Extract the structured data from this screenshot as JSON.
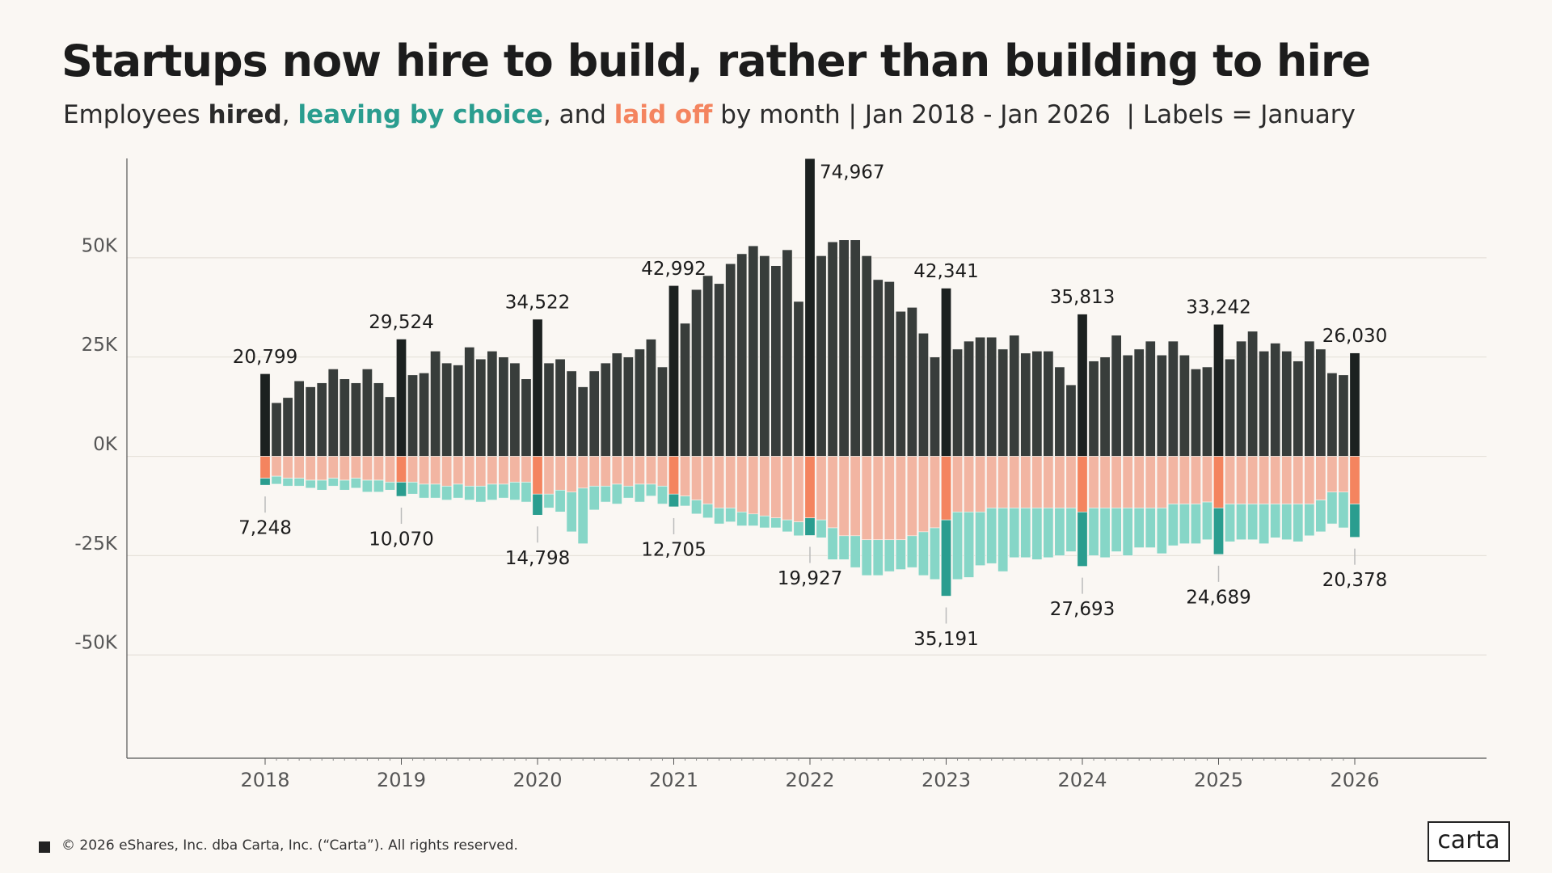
{
  "chart_data": {
    "type": "diverging-stacked-bar",
    "title": "Startups now hire to build, rather than building to hire",
    "subtitle": [
      "Employees ",
      ", ",
      ", and ",
      " by month | Jan 2018 - Jan 2026  | Labels = January"
    ],
    "footer": "© 2026 eShares, Inc. dba Carta, Inc. (“Carta”). All rights reserved.",
    "logo": "carta",
    "categories": [
      "2018",
      null,
      null,
      null,
      null,
      null,
      null,
      null,
      null,
      null,
      null,
      null,
      "2019",
      null,
      null,
      null,
      null,
      null,
      null,
      null,
      null,
      null,
      null,
      null,
      "2020",
      null,
      null,
      null,
      null,
      null,
      null,
      null,
      null,
      null,
      null,
      null,
      "2021",
      null,
      null,
      null,
      null,
      null,
      null,
      null,
      null,
      null,
      null,
      null,
      "2022",
      null,
      null,
      null,
      null,
      null,
      null,
      null,
      null,
      null,
      null,
      null,
      "2023",
      null,
      null,
      null,
      null,
      null,
      null,
      null,
      null,
      null,
      null,
      null,
      "2024",
      null,
      null,
      null,
      null,
      null,
      null,
      null,
      null,
      null,
      null,
      null,
      "2025",
      null,
      null,
      null,
      null,
      null,
      null,
      null,
      null,
      null,
      null,
      null,
      "2026"
    ],
    "ylim": [
      -76000,
      75000
    ],
    "yticks": [
      {
        "value": -50000,
        "label": "-50K"
      },
      {
        "value": -25000,
        "label": "-25K"
      },
      {
        "value": 0,
        "label": "0K"
      },
      {
        "value": 25000,
        "label": "25K"
      },
      {
        "value": 50000,
        "label": "50K"
      }
    ],
    "grid": true,
    "series": [
      {
        "name": "hired",
        "color": "#383d3b",
        "highlight_color": "#1c2120",
        "values": [
          20799,
          13500,
          14800,
          19000,
          17500,
          18500,
          22000,
          19500,
          18500,
          22000,
          18500,
          15000,
          29524,
          20500,
          21000,
          26500,
          23500,
          23000,
          27500,
          24500,
          26500,
          25000,
          23500,
          19500,
          34522,
          23500,
          24500,
          21500,
          17500,
          21500,
          23500,
          26000,
          25000,
          27000,
          29500,
          22500,
          42992,
          33500,
          42000,
          45500,
          43500,
          48500,
          51000,
          53000,
          50500,
          48000,
          52000,
          39000,
          74967,
          50500,
          54000,
          54500,
          54500,
          50500,
          44500,
          44000,
          36500,
          37500,
          31000,
          25000,
          42341,
          27000,
          29000,
          30000,
          30000,
          27000,
          30500,
          26000,
          26500,
          26500,
          22500,
          18000,
          35813,
          24000,
          25000,
          30500,
          25500,
          27000,
          29000,
          25500,
          29000,
          25500,
          22000,
          22500,
          33242,
          24500,
          29000,
          31500,
          26500,
          28500,
          26500,
          24000,
          29000,
          27000,
          21000,
          20500,
          26030
        ],
        "value_labels": [
          "20,799",
          null,
          null,
          null,
          null,
          null,
          null,
          null,
          null,
          null,
          null,
          null,
          "29,524",
          null,
          null,
          null,
          null,
          null,
          null,
          null,
          null,
          null,
          null,
          null,
          "34,522",
          null,
          null,
          null,
          null,
          null,
          null,
          null,
          null,
          null,
          null,
          null,
          "42,992",
          null,
          null,
          null,
          null,
          null,
          null,
          null,
          null,
          null,
          null,
          null,
          "74,967",
          null,
          null,
          null,
          null,
          null,
          null,
          null,
          null,
          null,
          null,
          null,
          "42,341",
          null,
          null,
          null,
          null,
          null,
          null,
          null,
          null,
          null,
          null,
          null,
          "35,813",
          null,
          null,
          null,
          null,
          null,
          null,
          null,
          null,
          null,
          null,
          null,
          "33,242",
          null,
          null,
          null,
          null,
          null,
          null,
          null,
          null,
          null,
          null,
          null,
          "26,030"
        ]
      },
      {
        "name": "laid off",
        "color": "#f2b5a2",
        "highlight_color": "#f4845f",
        "values": [
          -5500,
          -5000,
          -5500,
          -5500,
          -6000,
          -6000,
          -5500,
          -6000,
          -5500,
          -6000,
          -6000,
          -6500,
          -6500,
          -6500,
          -7000,
          -7000,
          -7500,
          -7000,
          -7500,
          -7500,
          -7000,
          -7000,
          -6500,
          -6500,
          -9500,
          -9500,
          -8500,
          -9000,
          -8000,
          -7500,
          -7500,
          -7000,
          -7500,
          -7000,
          -7000,
          -7500,
          -9500,
          -10000,
          -11000,
          -12000,
          -13000,
          -13000,
          -14000,
          -14500,
          -15000,
          -15500,
          -16000,
          -16500,
          -15500,
          -16000,
          -18000,
          -20000,
          -20000,
          -21000,
          -21000,
          -21000,
          -21000,
          -20000,
          -19000,
          -18000,
          -16000,
          -14000,
          -14000,
          -14000,
          -13000,
          -13000,
          -13000,
          -13000,
          -13000,
          -13000,
          -13000,
          -13000,
          -14000,
          -13000,
          -13000,
          -13000,
          -13000,
          -13000,
          -13000,
          -13000,
          -12000,
          -12000,
          -12000,
          -11500,
          -13000,
          -12000,
          -12000,
          -12000,
          -12000,
          -12000,
          -12000,
          -12000,
          -12000,
          -11000,
          -9000,
          -9000,
          -12000
        ]
      },
      {
        "name": "leaving by choice",
        "color": "#86d6c7",
        "highlight_color": "#2a9d8f",
        "values": [
          -1748,
          -2000,
          -2000,
          -2000,
          -2000,
          -2500,
          -2000,
          -2500,
          -2500,
          -3000,
          -3000,
          -2000,
          -3570,
          -3000,
          -3500,
          -3500,
          -3500,
          -3500,
          -3500,
          -4000,
          -4000,
          -3500,
          -4500,
          -5000,
          -5298,
          -3500,
          -5500,
          -10000,
          -14000,
          -6000,
          -4000,
          -5000,
          -3000,
          -4500,
          -3000,
          -4500,
          -3205,
          -2500,
          -3500,
          -3500,
          -4000,
          -3500,
          -3500,
          -3000,
          -3000,
          -2500,
          -3000,
          -3500,
          -4427,
          -4500,
          -8000,
          -6000,
          -8000,
          -9000,
          -9000,
          -8000,
          -7500,
          -8000,
          -11000,
          -13000,
          -19191,
          -17000,
          -16500,
          -13500,
          -14000,
          -16000,
          -12500,
          -12500,
          -13000,
          -12500,
          -12000,
          -11000,
          -13693,
          -12000,
          -12500,
          -11000,
          -12000,
          -10000,
          -10000,
          -11500,
          -10500,
          -10000,
          -10000,
          -9500,
          -11689,
          -9500,
          -9000,
          -9000,
          -10000,
          -8500,
          -9000,
          -9500,
          -8000,
          -8000,
          -8000,
          -9000,
          -8378
        ]
      }
    ],
    "departure_totals": {
      "values": [
        -7248,
        null,
        null,
        null,
        null,
        null,
        null,
        null,
        null,
        null,
        null,
        null,
        -10070,
        null,
        null,
        null,
        null,
        null,
        null,
        null,
        null,
        null,
        null,
        null,
        -14798,
        null,
        null,
        null,
        null,
        null,
        null,
        null,
        null,
        null,
        null,
        null,
        -12705,
        null,
        null,
        null,
        null,
        null,
        null,
        null,
        null,
        null,
        null,
        null,
        -19927,
        null,
        null,
        null,
        null,
        null,
        null,
        null,
        null,
        null,
        null,
        null,
        -35191,
        null,
        null,
        null,
        null,
        null,
        null,
        null,
        null,
        null,
        null,
        null,
        -27693,
        null,
        null,
        null,
        null,
        null,
        null,
        null,
        null,
        null,
        null,
        null,
        -24689,
        null,
        null,
        null,
        null,
        null,
        null,
        null,
        null,
        null,
        null,
        null,
        -20378
      ],
      "value_labels": [
        "7,248",
        null,
        null,
        null,
        null,
        null,
        null,
        null,
        null,
        null,
        null,
        null,
        "10,070",
        null,
        null,
        null,
        null,
        null,
        null,
        null,
        null,
        null,
        null,
        null,
        "14,798",
        null,
        null,
        null,
        null,
        null,
        null,
        null,
        null,
        null,
        null,
        null,
        "12,705",
        null,
        null,
        null,
        null,
        null,
        null,
        null,
        null,
        null,
        null,
        null,
        "19,927",
        null,
        null,
        null,
        null,
        null,
        null,
        null,
        null,
        null,
        null,
        null,
        "35,191",
        null,
        null,
        null,
        null,
        null,
        null,
        null,
        null,
        null,
        null,
        null,
        "27,693",
        null,
        null,
        null,
        null,
        null,
        null,
        null,
        null,
        null,
        null,
        null,
        "24,689",
        null,
        null,
        null,
        null,
        null,
        null,
        null,
        null,
        null,
        null,
        null,
        "20,378"
      ]
    }
  }
}
